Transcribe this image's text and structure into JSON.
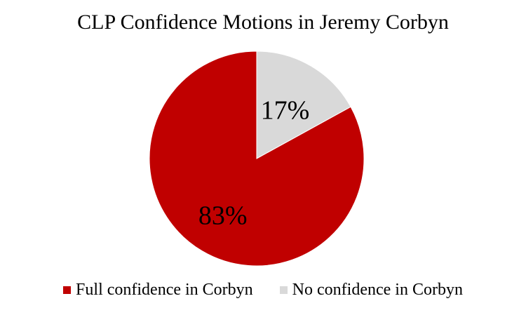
{
  "chart_data": {
    "type": "pie",
    "title": "CLP Confidence Motions in Jeremy Corbyn",
    "slices": [
      {
        "label": "No confidence in Corbyn",
        "value": 17,
        "data_label": "17%",
        "color": "#D9D9D9"
      },
      {
        "label": "Full confidence in Corbyn",
        "value": 83,
        "data_label": "83%",
        "color": "#C00000"
      }
    ],
    "legend": {
      "position": "bottom",
      "entries": [
        {
          "label": "Full confidence in Corbyn",
          "color": "#C00000"
        },
        {
          "label": "No confidence in Corbyn",
          "color": "#D9D9D9"
        }
      ]
    }
  }
}
